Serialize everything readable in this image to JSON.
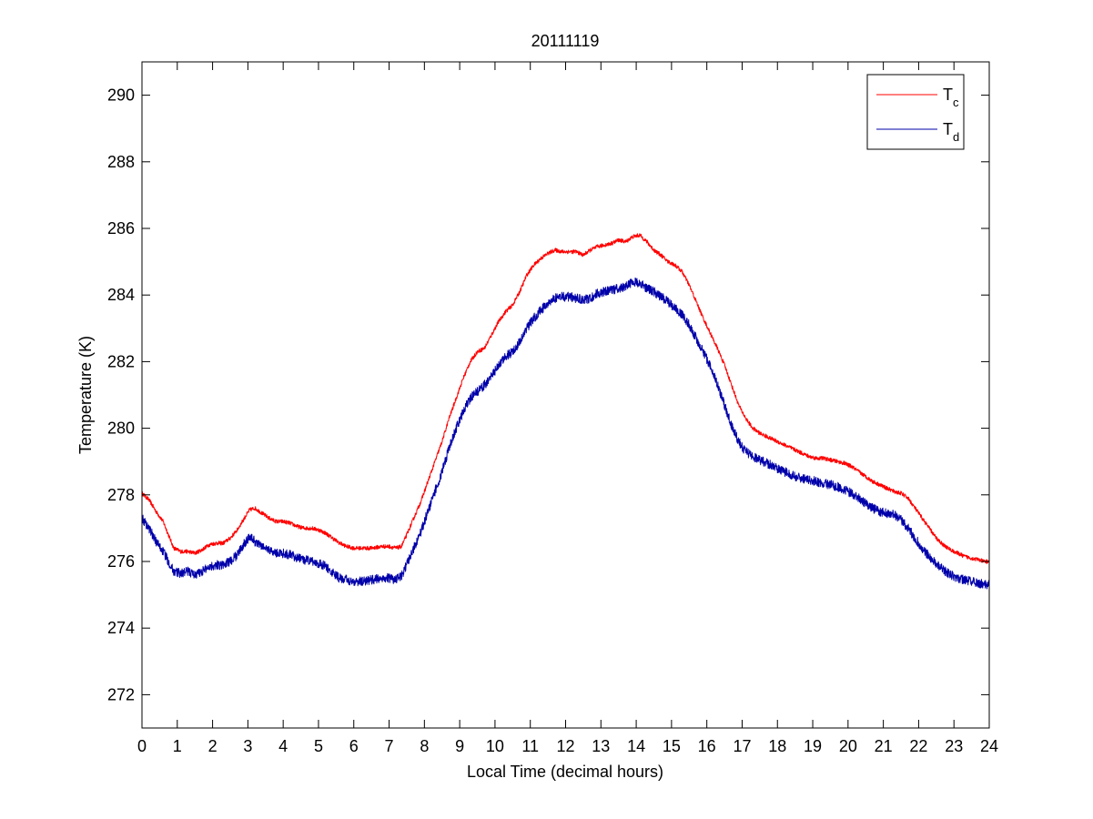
{
  "chart_data": {
    "type": "line",
    "title": "20111119",
    "xlabel": "Local Time (decimal hours)",
    "ylabel": "Temperature (K)",
    "xlim": [
      0,
      24
    ],
    "ylim": [
      271,
      291
    ],
    "xticks": [
      0,
      1,
      2,
      3,
      4,
      5,
      6,
      7,
      8,
      9,
      10,
      11,
      12,
      13,
      14,
      15,
      16,
      17,
      18,
      19,
      20,
      21,
      22,
      23,
      24
    ],
    "yticks": [
      272,
      274,
      276,
      278,
      280,
      282,
      284,
      286,
      288,
      290
    ],
    "grid": false,
    "legend_position": "top-right",
    "series": [
      {
        "name": "T",
        "subscript": "c",
        "color": "#ff0000",
        "noise": 0.06,
        "points": [
          [
            0.0,
            278.05
          ],
          [
            0.2,
            277.85
          ],
          [
            0.4,
            277.5
          ],
          [
            0.6,
            277.2
          ],
          [
            0.75,
            276.8
          ],
          [
            0.9,
            276.4
          ],
          [
            1.1,
            276.3
          ],
          [
            1.3,
            276.3
          ],
          [
            1.5,
            276.25
          ],
          [
            1.7,
            276.35
          ],
          [
            1.9,
            276.5
          ],
          [
            2.1,
            276.55
          ],
          [
            2.3,
            276.55
          ],
          [
            2.5,
            276.7
          ],
          [
            2.7,
            276.95
          ],
          [
            2.9,
            277.3
          ],
          [
            3.05,
            277.55
          ],
          [
            3.2,
            277.6
          ],
          [
            3.4,
            277.45
          ],
          [
            3.6,
            277.3
          ],
          [
            3.8,
            277.2
          ],
          [
            4.0,
            277.2
          ],
          [
            4.2,
            277.15
          ],
          [
            4.4,
            277.05
          ],
          [
            4.6,
            277.0
          ],
          [
            4.8,
            277.0
          ],
          [
            5.0,
            276.95
          ],
          [
            5.2,
            276.85
          ],
          [
            5.4,
            276.7
          ],
          [
            5.6,
            276.55
          ],
          [
            5.8,
            276.45
          ],
          [
            6.0,
            276.4
          ],
          [
            6.2,
            276.4
          ],
          [
            6.5,
            276.4
          ],
          [
            6.8,
            276.45
          ],
          [
            7.0,
            276.45
          ],
          [
            7.2,
            276.4
          ],
          [
            7.35,
            276.45
          ],
          [
            7.5,
            276.8
          ],
          [
            7.7,
            277.3
          ],
          [
            7.9,
            277.8
          ],
          [
            8.1,
            278.4
          ],
          [
            8.3,
            279.0
          ],
          [
            8.5,
            279.6
          ],
          [
            8.7,
            280.3
          ],
          [
            8.9,
            280.9
          ],
          [
            9.1,
            281.5
          ],
          [
            9.3,
            282.0
          ],
          [
            9.5,
            282.3
          ],
          [
            9.7,
            282.4
          ],
          [
            9.9,
            282.8
          ],
          [
            10.1,
            283.2
          ],
          [
            10.3,
            283.5
          ],
          [
            10.5,
            283.7
          ],
          [
            10.7,
            284.1
          ],
          [
            10.9,
            284.6
          ],
          [
            11.1,
            284.9
          ],
          [
            11.3,
            285.1
          ],
          [
            11.5,
            285.25
          ],
          [
            11.7,
            285.35
          ],
          [
            11.9,
            285.3
          ],
          [
            12.1,
            285.3
          ],
          [
            12.3,
            285.3
          ],
          [
            12.5,
            285.2
          ],
          [
            12.7,
            285.35
          ],
          [
            12.9,
            285.45
          ],
          [
            13.1,
            285.5
          ],
          [
            13.3,
            285.55
          ],
          [
            13.5,
            285.65
          ],
          [
            13.7,
            285.6
          ],
          [
            13.9,
            285.75
          ],
          [
            14.1,
            285.8
          ],
          [
            14.3,
            285.6
          ],
          [
            14.5,
            285.35
          ],
          [
            14.7,
            285.2
          ],
          [
            14.9,
            285.0
          ],
          [
            15.1,
            284.9
          ],
          [
            15.3,
            284.7
          ],
          [
            15.5,
            284.3
          ],
          [
            15.7,
            283.8
          ],
          [
            15.9,
            283.3
          ],
          [
            16.1,
            282.85
          ],
          [
            16.3,
            282.4
          ],
          [
            16.5,
            281.9
          ],
          [
            16.7,
            281.3
          ],
          [
            16.9,
            280.7
          ],
          [
            17.1,
            280.3
          ],
          [
            17.3,
            280.0
          ],
          [
            17.5,
            279.85
          ],
          [
            17.7,
            279.75
          ],
          [
            17.9,
            279.65
          ],
          [
            18.1,
            279.55
          ],
          [
            18.3,
            279.45
          ],
          [
            18.5,
            279.35
          ],
          [
            18.7,
            279.25
          ],
          [
            18.9,
            279.15
          ],
          [
            19.1,
            279.1
          ],
          [
            19.3,
            279.1
          ],
          [
            19.5,
            279.05
          ],
          [
            19.7,
            279.0
          ],
          [
            19.9,
            278.95
          ],
          [
            20.1,
            278.85
          ],
          [
            20.3,
            278.7
          ],
          [
            20.5,
            278.55
          ],
          [
            20.7,
            278.4
          ],
          [
            20.9,
            278.3
          ],
          [
            21.1,
            278.2
          ],
          [
            21.3,
            278.1
          ],
          [
            21.5,
            278.05
          ],
          [
            21.7,
            277.9
          ],
          [
            21.9,
            277.6
          ],
          [
            22.1,
            277.3
          ],
          [
            22.3,
            277.0
          ],
          [
            22.5,
            276.7
          ],
          [
            22.7,
            276.5
          ],
          [
            22.9,
            276.35
          ],
          [
            23.1,
            276.25
          ],
          [
            23.3,
            276.15
          ],
          [
            23.5,
            276.1
          ],
          [
            23.7,
            276.05
          ],
          [
            23.85,
            276.0
          ],
          [
            24.0,
            276.0
          ]
        ]
      },
      {
        "name": "T",
        "subscript": "d",
        "color": "#0000aa",
        "noise": 0.14,
        "points": [
          [
            0.0,
            277.3
          ],
          [
            0.2,
            277.0
          ],
          [
            0.4,
            276.6
          ],
          [
            0.6,
            276.3
          ],
          [
            0.75,
            276.0
          ],
          [
            0.9,
            275.7
          ],
          [
            1.1,
            275.65
          ],
          [
            1.3,
            275.7
          ],
          [
            1.5,
            275.6
          ],
          [
            1.7,
            275.7
          ],
          [
            1.9,
            275.85
          ],
          [
            2.1,
            275.9
          ],
          [
            2.3,
            275.9
          ],
          [
            2.5,
            276.0
          ],
          [
            2.7,
            276.2
          ],
          [
            2.9,
            276.55
          ],
          [
            3.05,
            276.75
          ],
          [
            3.2,
            276.6
          ],
          [
            3.4,
            276.45
          ],
          [
            3.6,
            276.35
          ],
          [
            3.8,
            276.25
          ],
          [
            4.0,
            276.25
          ],
          [
            4.2,
            276.2
          ],
          [
            4.4,
            276.1
          ],
          [
            4.6,
            276.05
          ],
          [
            4.8,
            276.0
          ],
          [
            5.0,
            275.95
          ],
          [
            5.2,
            275.85
          ],
          [
            5.4,
            275.65
          ],
          [
            5.6,
            275.5
          ],
          [
            5.8,
            275.45
          ],
          [
            6.0,
            275.4
          ],
          [
            6.2,
            275.4
          ],
          [
            6.5,
            275.45
          ],
          [
            6.8,
            275.5
          ],
          [
            7.0,
            275.5
          ],
          [
            7.2,
            275.45
          ],
          [
            7.35,
            275.55
          ],
          [
            7.5,
            275.9
          ],
          [
            7.7,
            276.4
          ],
          [
            7.9,
            276.9
          ],
          [
            8.1,
            277.5
          ],
          [
            8.3,
            278.1
          ],
          [
            8.5,
            278.7
          ],
          [
            8.7,
            279.4
          ],
          [
            8.9,
            280.0
          ],
          [
            9.1,
            280.5
          ],
          [
            9.3,
            280.9
          ],
          [
            9.5,
            281.1
          ],
          [
            9.7,
            281.3
          ],
          [
            9.9,
            281.55
          ],
          [
            10.1,
            281.9
          ],
          [
            10.3,
            282.15
          ],
          [
            10.5,
            282.3
          ],
          [
            10.7,
            282.6
          ],
          [
            10.9,
            283.0
          ],
          [
            11.1,
            283.3
          ],
          [
            11.3,
            283.55
          ],
          [
            11.5,
            283.75
          ],
          [
            11.7,
            283.9
          ],
          [
            11.9,
            283.95
          ],
          [
            12.1,
            283.95
          ],
          [
            12.3,
            283.9
          ],
          [
            12.5,
            283.85
          ],
          [
            12.7,
            283.9
          ],
          [
            12.9,
            284.05
          ],
          [
            13.1,
            284.1
          ],
          [
            13.3,
            284.15
          ],
          [
            13.5,
            284.2
          ],
          [
            13.7,
            284.25
          ],
          [
            13.9,
            284.4
          ],
          [
            14.1,
            284.35
          ],
          [
            14.3,
            284.2
          ],
          [
            14.5,
            284.1
          ],
          [
            14.7,
            283.95
          ],
          [
            14.9,
            283.8
          ],
          [
            15.1,
            283.6
          ],
          [
            15.3,
            283.4
          ],
          [
            15.5,
            283.1
          ],
          [
            15.7,
            282.7
          ],
          [
            15.9,
            282.3
          ],
          [
            16.1,
            281.85
          ],
          [
            16.3,
            281.3
          ],
          [
            16.5,
            280.7
          ],
          [
            16.7,
            280.1
          ],
          [
            16.9,
            279.6
          ],
          [
            17.1,
            279.3
          ],
          [
            17.3,
            279.15
          ],
          [
            17.5,
            279.05
          ],
          [
            17.7,
            278.95
          ],
          [
            17.9,
            278.85
          ],
          [
            18.1,
            278.75
          ],
          [
            18.3,
            278.65
          ],
          [
            18.5,
            278.55
          ],
          [
            18.7,
            278.5
          ],
          [
            18.9,
            278.45
          ],
          [
            19.1,
            278.4
          ],
          [
            19.3,
            278.35
          ],
          [
            19.5,
            278.3
          ],
          [
            19.7,
            278.25
          ],
          [
            19.9,
            278.15
          ],
          [
            20.1,
            278.05
          ],
          [
            20.3,
            277.9
          ],
          [
            20.5,
            277.75
          ],
          [
            20.7,
            277.6
          ],
          [
            20.9,
            277.5
          ],
          [
            21.1,
            277.45
          ],
          [
            21.3,
            277.4
          ],
          [
            21.5,
            277.25
          ],
          [
            21.7,
            277.0
          ],
          [
            21.9,
            276.7
          ],
          [
            22.1,
            276.4
          ],
          [
            22.3,
            276.15
          ],
          [
            22.5,
            275.95
          ],
          [
            22.7,
            275.75
          ],
          [
            22.9,
            275.6
          ],
          [
            23.1,
            275.5
          ],
          [
            23.3,
            275.45
          ],
          [
            23.5,
            275.4
          ],
          [
            23.7,
            275.35
          ],
          [
            23.85,
            275.3
          ],
          [
            24.0,
            275.3
          ]
        ]
      }
    ]
  }
}
